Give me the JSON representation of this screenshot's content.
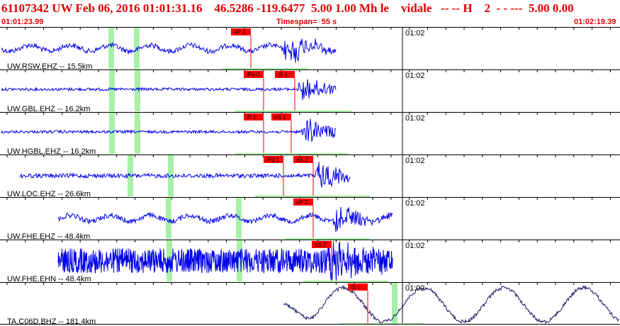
{
  "header": {
    "title": "61107342 UW Feb 06, 2016 01:01:31.16    46.5286 -119.6477  5.00 1.00 Mh le    vidale   -- -- H    2  - - ---  5.00 0.00",
    "start_time": "01:01:23.99",
    "timespan": "Timespan=  55 s",
    "end_time": "01:02:19.39"
  },
  "colors": {
    "header": "#e00000",
    "trace": "#0000ee",
    "trace_last": "#1a1a66",
    "pick": "#ff0000",
    "window": "#a8f0a8"
  },
  "channels": [
    {
      "label": "UW.RSW.EHZ -- 15.5km",
      "time_label": "01:02",
      "picks": [
        {
          "text": "eP 2",
          "t": 0.405
        }
      ]
    },
    {
      "label": "UW.GBL.EHZ -- 16.2km",
      "time_label": "01:02",
      "picks": [
        {
          "text": "iPd 0",
          "t": 0.425
        },
        {
          "text": "iS 1",
          "t": 0.475
        }
      ]
    },
    {
      "label": "UW.HGBL.EHZ -- 16.2km",
      "time_label": "01:02",
      "picks": [
        {
          "text": "iP 1",
          "t": 0.425
        },
        {
          "text": "eS 1",
          "t": 0.47
        }
      ]
    },
    {
      "label": "UW.LOC.EHZ -- 26.6km",
      "time_label": "01:02",
      "picks": [
        {
          "text": "iPd 1",
          "t": 0.457
        },
        {
          "text": "eS 2",
          "t": 0.505
        }
      ]
    },
    {
      "label": "UW.FHE.EHZ -- 48.4km",
      "time_label": "01:02",
      "picks": [
        {
          "text": "eP 2",
          "t": 0.505
        }
      ]
    },
    {
      "label": "UW.FHE.EHN -- 48.4km",
      "time_label": "01:02",
      "picks": [
        {
          "text": "eS 2",
          "t": 0.535
        }
      ]
    },
    {
      "label": "TA.C06D.BHZ -- 181.4km",
      "time_label": "01:02",
      "picks": [
        {
          "text": "iS 1",
          "t": 0.593
        }
      ]
    }
  ]
}
